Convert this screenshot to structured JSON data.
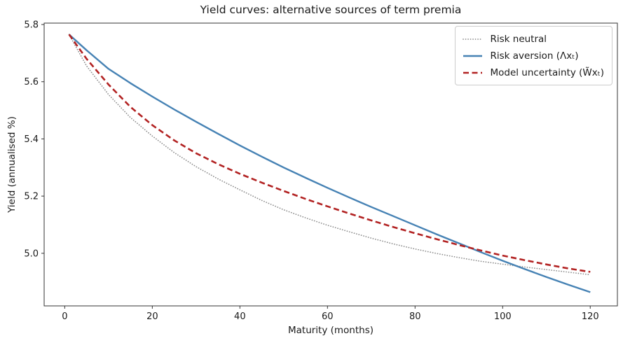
{
  "colors": {
    "frame": "#333333",
    "text": "#1a1a1a",
    "legend_border": "#cccccc",
    "background": "#ffffff"
  },
  "chart_data": {
    "type": "line",
    "title": "Yield curves: alternative sources of term premia",
    "xlabel": "Maturity (months)",
    "ylabel": "Yield (annualised %)",
    "xlim": [
      -4.7,
      126.2
    ],
    "ylim": [
      4.816,
      5.805
    ],
    "x_ticks": [
      0,
      20,
      40,
      60,
      80,
      100,
      120
    ],
    "y_ticks": [
      5.0,
      5.2,
      5.4,
      5.6,
      5.8
    ],
    "grid": false,
    "legend_position": "upper right",
    "x": [
      1,
      5,
      10,
      15,
      20,
      25,
      30,
      35,
      40,
      45,
      50,
      55,
      60,
      65,
      70,
      75,
      80,
      85,
      90,
      95,
      100,
      105,
      110,
      115,
      120
    ],
    "series": [
      {
        "id": "risk-neutral",
        "name": "Risk neutral",
        "color": "#8c8c8c",
        "style": "dotted",
        "width": 1.7,
        "values": [
          5.765,
          5.655,
          5.555,
          5.475,
          5.41,
          5.352,
          5.303,
          5.26,
          5.222,
          5.185,
          5.152,
          5.124,
          5.098,
          5.075,
          5.053,
          5.033,
          5.015,
          4.999,
          4.985,
          4.972,
          4.962,
          4.952,
          4.943,
          4.934,
          4.925
        ]
      },
      {
        "id": "risk-aversion",
        "name": "Risk aversion (Λxₜ)",
        "color": "#4682b4",
        "style": "solid",
        "width": 2.4,
        "values": [
          5.765,
          5.71,
          5.645,
          5.595,
          5.548,
          5.503,
          5.46,
          5.418,
          5.377,
          5.338,
          5.3,
          5.264,
          5.229,
          5.195,
          5.162,
          5.13,
          5.098,
          5.066,
          5.035,
          5.004,
          4.974,
          4.945,
          4.917,
          4.89,
          4.864
        ]
      },
      {
        "id": "model-uncertainty",
        "name": "Model uncertainty (W̃xₜ)",
        "color": "#b22222",
        "style": "dashed",
        "width": 2.6,
        "values": [
          5.765,
          5.68,
          5.59,
          5.512,
          5.448,
          5.395,
          5.35,
          5.312,
          5.278,
          5.247,
          5.218,
          5.19,
          5.164,
          5.139,
          5.115,
          5.092,
          5.07,
          5.049,
          5.029,
          5.01,
          4.992,
          4.976,
          4.961,
          4.947,
          4.935
        ]
      }
    ]
  }
}
